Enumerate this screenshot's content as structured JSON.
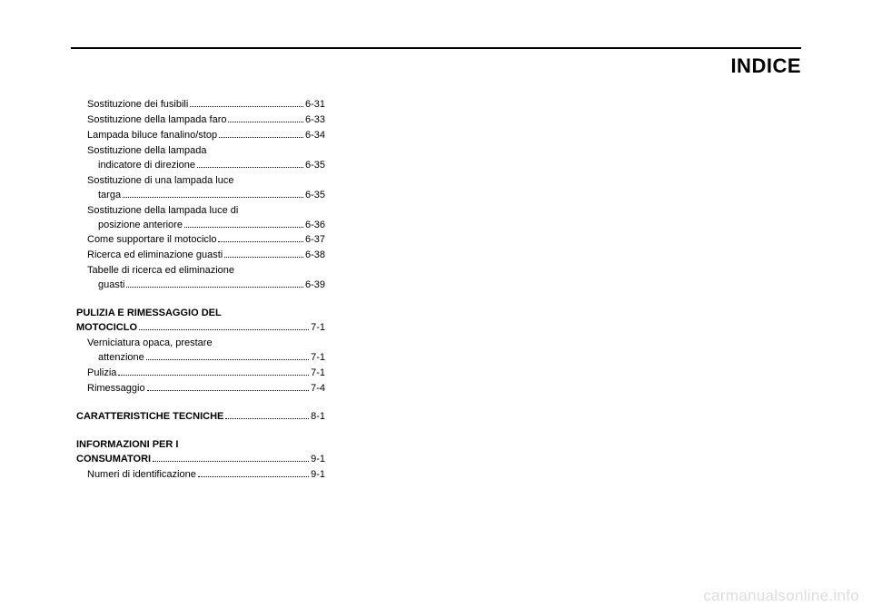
{
  "header": {
    "title": "INDICE"
  },
  "watermark": "carmanualsonline.info",
  "col1": {
    "entries": [
      {
        "label": "Sostituzione dei fusibili",
        "page": "6-31",
        "indent": 1
      },
      {
        "label": "Sostituzione della lampada faro",
        "page": "6-33",
        "indent": 1
      },
      {
        "label": "Lampada biluce fanalino/stop",
        "page": "6-34",
        "indent": 1
      },
      {
        "label": "Sostituzione della lampada",
        "cont": true,
        "indent": 1
      },
      {
        "label": "indicatore di direzione",
        "page": "6-35",
        "indent": 2
      },
      {
        "label": "Sostituzione di una lampada luce",
        "cont": true,
        "indent": 1
      },
      {
        "label": "targa",
        "page": "6-35",
        "indent": 2
      },
      {
        "label": "Sostituzione della lampada luce di",
        "cont": true,
        "indent": 1
      },
      {
        "label": "posizione anteriore",
        "page": "6-36",
        "indent": 2
      },
      {
        "label": "Come supportare il motociclo",
        "page": "6-37",
        "indent": 1
      },
      {
        "label": "Ricerca ed eliminazione guasti",
        "page": "6-38",
        "indent": 1
      },
      {
        "label": "Tabelle di ricerca ed eliminazione",
        "cont": true,
        "indent": 1
      },
      {
        "label": "guasti",
        "page": "6-39",
        "indent": 2
      }
    ],
    "section2": {
      "heading1": "PULIZIA E RIMESSAGGIO DEL",
      "heading2_label": "MOTOCICLO",
      "heading2_page": "7-1",
      "entries": [
        {
          "label": "Verniciatura opaca, prestare",
          "cont": true,
          "indent": 1
        },
        {
          "label": "attenzione",
          "page": "7-1",
          "indent": 2
        },
        {
          "label": "Pulizia",
          "page": "7-1",
          "indent": 1
        },
        {
          "label": "Rimessaggio",
          "page": "7-4",
          "indent": 1
        }
      ]
    },
    "section3": {
      "heading_label": "CARATTERISTICHE TECNICHE",
      "heading_page": "8-1"
    },
    "section4": {
      "heading1": "INFORMAZIONI PER I",
      "heading2_label": "CONSUMATORI",
      "heading2_page": "9-1",
      "entries": [
        {
          "label": "Numeri di identificazione",
          "page": "9-1",
          "indent": 1
        }
      ]
    }
  }
}
